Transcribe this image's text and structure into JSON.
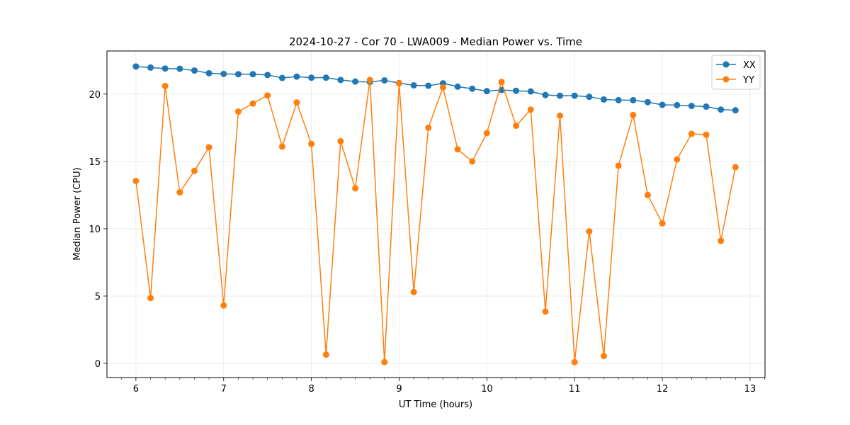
{
  "chart_data": {
    "type": "line",
    "title": "2024-10-27 - Cor 70 - LWA009 - Median Power vs. Time",
    "xlabel": "UT Time (hours)",
    "ylabel": "Median Power (CPU)",
    "xlim": [
      5.67,
      13.17
    ],
    "ylim": [
      -1.05,
      23.2
    ],
    "xticks": [
      6,
      7,
      8,
      9,
      10,
      11,
      12,
      13
    ],
    "yticks": [
      0,
      5,
      10,
      15,
      20
    ],
    "grid": true,
    "legend_position": "top-right",
    "x": [
      6.0,
      6.167,
      6.333,
      6.5,
      6.667,
      6.833,
      7.0,
      7.167,
      7.333,
      7.5,
      7.667,
      7.833,
      8.0,
      8.167,
      8.333,
      8.5,
      8.667,
      8.833,
      9.0,
      9.167,
      9.333,
      9.5,
      9.667,
      9.833,
      10.0,
      10.167,
      10.333,
      10.5,
      10.667,
      10.833,
      11.0,
      11.167,
      11.333,
      11.5,
      11.667,
      11.833,
      12.0,
      12.167,
      12.333,
      12.5,
      12.667,
      12.833
    ],
    "series": [
      {
        "name": "XX",
        "color": "#1f77b4",
        "values": [
          22.05,
          21.97,
          21.9,
          21.88,
          21.75,
          21.55,
          21.5,
          21.48,
          21.48,
          21.42,
          21.2,
          21.3,
          21.22,
          21.22,
          21.05,
          20.93,
          20.9,
          21.02,
          20.82,
          20.65,
          20.62,
          20.8,
          20.55,
          20.4,
          20.22,
          20.3,
          20.25,
          20.2,
          19.93,
          19.88,
          19.88,
          19.8,
          19.6,
          19.55,
          19.55,
          19.4,
          19.2,
          19.18,
          19.12,
          19.07,
          18.85,
          18.8
        ]
      },
      {
        "name": "YY",
        "color": "#ff7f0e",
        "values": [
          13.55,
          4.85,
          20.6,
          12.7,
          14.3,
          16.05,
          4.3,
          18.7,
          19.3,
          19.9,
          16.1,
          19.38,
          16.3,
          0.65,
          16.5,
          13.0,
          21.05,
          0.1,
          20.8,
          5.3,
          17.5,
          20.5,
          15.9,
          15.0,
          17.1,
          20.9,
          17.65,
          18.85,
          3.85,
          18.4,
          0.1,
          9.8,
          0.55,
          14.68,
          18.45,
          12.5,
          10.4,
          15.15,
          17.05,
          16.98,
          9.1,
          14.57
        ]
      }
    ]
  }
}
